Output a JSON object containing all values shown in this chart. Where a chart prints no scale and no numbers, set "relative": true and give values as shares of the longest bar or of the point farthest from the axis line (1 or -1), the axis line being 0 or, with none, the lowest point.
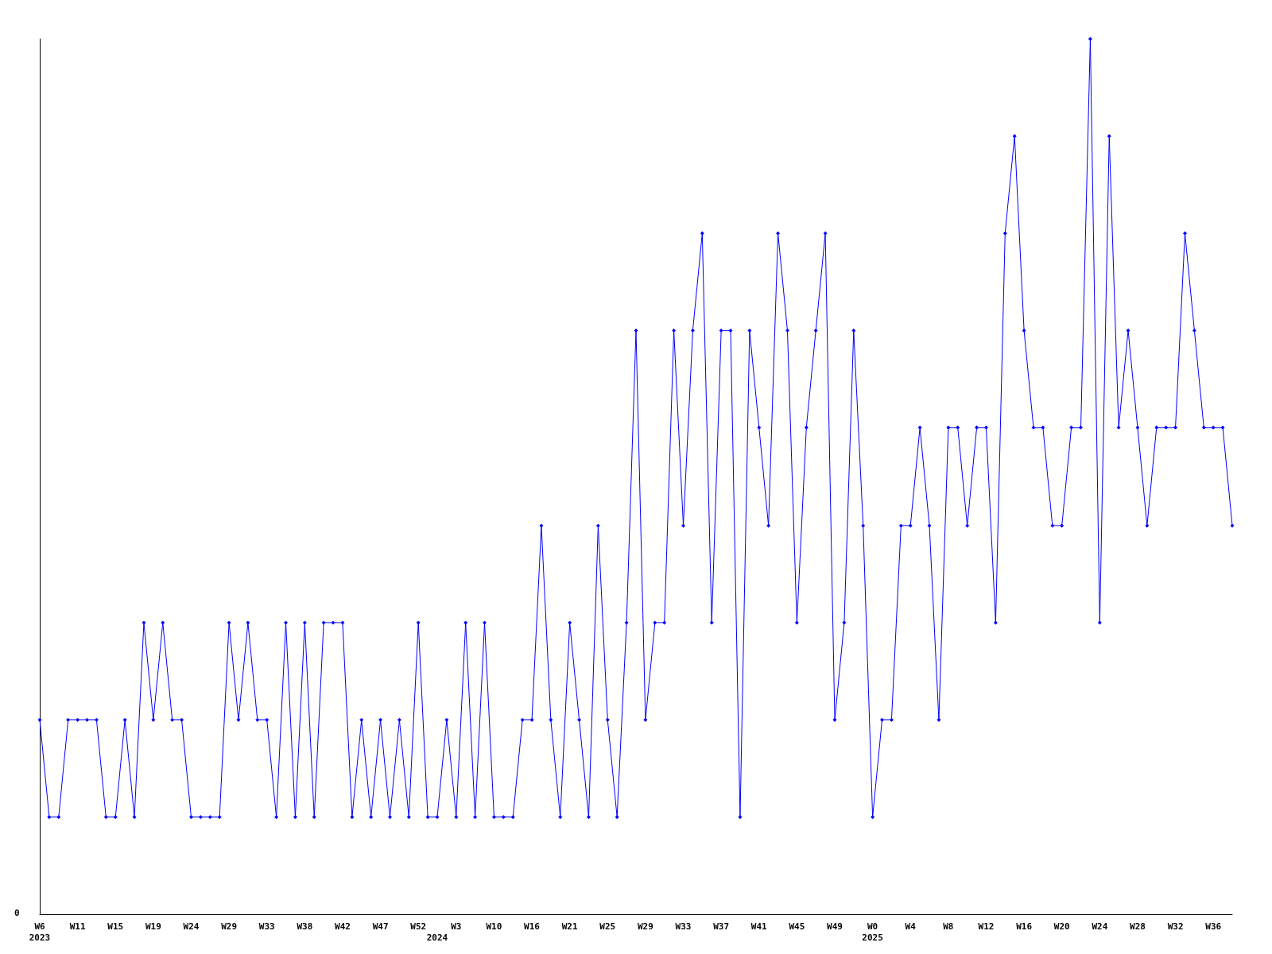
{
  "chart_data": {
    "type": "line",
    "relative": true,
    "marker": "diamond",
    "line_style": "solid",
    "categories": [
      "W6\n2023",
      null,
      null,
      null,
      "W11",
      null,
      null,
      null,
      "W15",
      null,
      null,
      null,
      "W19",
      null,
      null,
      null,
      "W24",
      null,
      null,
      null,
      "W29",
      null,
      null,
      null,
      "W33",
      null,
      null,
      null,
      "W38",
      null,
      null,
      null,
      "W42",
      null,
      null,
      null,
      "W47",
      null,
      null,
      null,
      "W52",
      null,
      "\n2024",
      null,
      "W3",
      null,
      null,
      null,
      "W10",
      null,
      null,
      null,
      "W16",
      null,
      null,
      null,
      "W21",
      null,
      null,
      null,
      "W25",
      null,
      null,
      null,
      "W29",
      null,
      null,
      null,
      "W33",
      null,
      null,
      null,
      "W37",
      null,
      null,
      null,
      "W41",
      null,
      null,
      null,
      "W45",
      null,
      null,
      null,
      "W49",
      null,
      null,
      null,
      "W0\n2025",
      null,
      null,
      null,
      "W4",
      null,
      null,
      null,
      "W8",
      null,
      null,
      null,
      "W12",
      null,
      null,
      null,
      "W16",
      null,
      null,
      null,
      "W20",
      null,
      null,
      null,
      "W24",
      null,
      null,
      null,
      "W28",
      null,
      null,
      null,
      "W32",
      null,
      null,
      null,
      "W36",
      null,
      null
    ],
    "series": [
      {
        "color": "#0000ff",
        "values": [
          0.222,
          0.111,
          0.111,
          0.222,
          0.222,
          0.222,
          0.222,
          0.111,
          0.111,
          0.222,
          0.111,
          0.333,
          0.222,
          0.333,
          0.222,
          0.222,
          0.111,
          0.111,
          0.111,
          0.111,
          0.333,
          0.222,
          0.333,
          0.222,
          0.222,
          0.111,
          0.333,
          0.111,
          0.333,
          0.111,
          0.333,
          0.333,
          0.333,
          0.111,
          0.222,
          0.111,
          0.222,
          0.111,
          0.222,
          0.111,
          0.333,
          0.111,
          0.111,
          0.222,
          0.111,
          0.333,
          0.111,
          0.333,
          0.111,
          0.111,
          0.111,
          0.222,
          0.222,
          0.444,
          0.222,
          0.111,
          0.333,
          0.222,
          0.111,
          0.444,
          0.222,
          0.111,
          0.333,
          0.667,
          0.222,
          0.333,
          0.333,
          0.667,
          0.444,
          0.667,
          0.778,
          0.333,
          0.667,
          0.667,
          0.111,
          0.667,
          0.556,
          0.444,
          0.778,
          0.667,
          0.333,
          0.556,
          0.667,
          0.778,
          0.222,
          0.333,
          0.667,
          0.444,
          0.111,
          0.222,
          0.222,
          0.444,
          0.444,
          0.556,
          0.444,
          0.222,
          0.556,
          0.556,
          0.444,
          0.556,
          0.556,
          0.333,
          0.778,
          0.889,
          0.667,
          0.556,
          0.556,
          0.444,
          0.444,
          0.556,
          0.556,
          1,
          0.333,
          0.889,
          0.556,
          0.667,
          0.556,
          0.444,
          0.556,
          0.556,
          0.556,
          0.778,
          0.667,
          0.556,
          0.556,
          0.556,
          0.444
        ]
      }
    ],
    "annotations": [
      "0"
    ]
  }
}
